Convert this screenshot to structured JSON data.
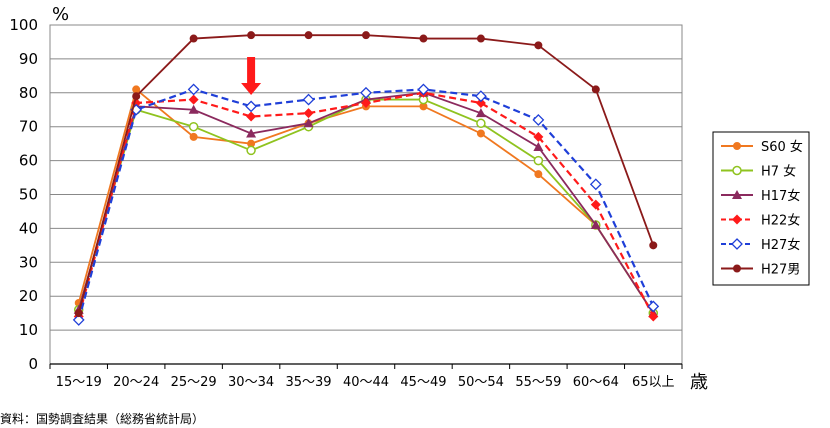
{
  "chart_data": {
    "type": "line",
    "y_unit": "%",
    "x_unit": "歳",
    "ylim": [
      0,
      100
    ],
    "yticks": [
      0,
      10,
      20,
      30,
      40,
      50,
      60,
      70,
      80,
      90,
      100
    ],
    "grid": "horizontal",
    "legend_position": "right",
    "categories": [
      "15～19",
      "20～24",
      "25～29",
      "30～34",
      "35～39",
      "40～44",
      "45～49",
      "50～54",
      "55～59",
      "60～64",
      "65以上"
    ],
    "series": [
      {
        "name": "S60 女",
        "color": "#f07820",
        "dash": "solid",
        "marker": "circle-filled",
        "values": [
          18,
          81,
          67,
          65,
          71,
          76,
          76,
          68,
          56,
          41,
          15
        ]
      },
      {
        "name": "H7 女",
        "color": "#8fc31f",
        "dash": "solid",
        "marker": "circle-open",
        "values": [
          16,
          75,
          70,
          63,
          70,
          78,
          78,
          71,
          60,
          41,
          15
        ]
      },
      {
        "name": "H17女",
        "color": "#8b2a5e",
        "dash": "solid",
        "marker": "triangle",
        "values": [
          16,
          76,
          75,
          68,
          71,
          78,
          80,
          74,
          64,
          41,
          15
        ]
      },
      {
        "name": "H22女",
        "color": "#ff1a1a",
        "dash": "dash",
        "marker": "diamond-filled",
        "values": [
          14,
          77,
          78,
          73,
          74,
          77,
          80,
          77,
          67,
          47,
          14
        ]
      },
      {
        "name": "H27女",
        "color": "#1f3fd8",
        "dash": "dash",
        "marker": "diamond-open",
        "values": [
          13,
          75,
          81,
          76,
          78,
          80,
          81,
          79,
          72,
          53,
          17
        ]
      },
      {
        "name": "H27男",
        "color": "#8b1a1a",
        "dash": "solid",
        "marker": "circle-dark",
        "values": [
          15,
          79,
          96,
          97,
          97,
          97,
          96,
          96,
          94,
          81,
          35
        ]
      }
    ],
    "annotations": [
      {
        "type": "arrow-down",
        "category": "30～34",
        "color": "#ff1a1a"
      }
    ]
  },
  "source_note": "資料：国勢調査結果（総務省統計局）"
}
